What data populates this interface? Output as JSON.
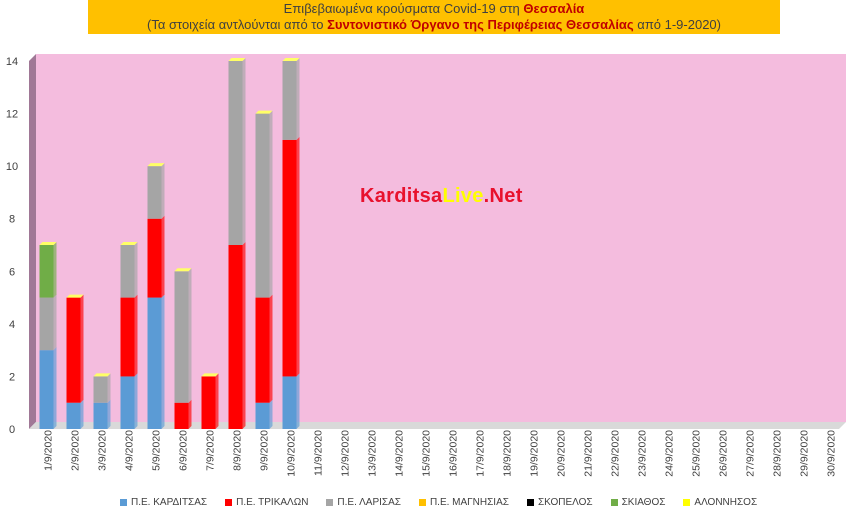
{
  "header": {
    "line1_prefix": "Επιβεβαιωμένα κρούσματα Covid-19 στη ",
    "line1_bold": "Θεσσαλία",
    "line2_prefix": "(Τα στοιχεία αντλούνται από το ",
    "line2_bold": "Συντονιστικό Όργανο της Περιφέρειας Θεσσαλίας",
    "line2_suffix": " από 1-9-2020)"
  },
  "watermark": {
    "part1": "Karditsa",
    "part2": "Live",
    "part3": ".Net"
  },
  "chart_data": {
    "type": "bar",
    "stacked": true,
    "ylim": [
      0,
      14
    ],
    "yticks": [
      0,
      2,
      4,
      6,
      8,
      10,
      12,
      14
    ],
    "grid": false,
    "legend_position": "bottom",
    "categories": [
      "1/9/2020",
      "2/9/2020",
      "3/9/2020",
      "4/9/2020",
      "5/9/2020",
      "6/9/2020",
      "7/9/2020",
      "8/9/2020",
      "9/9/2020",
      "10/9/2020",
      "11/9/2020",
      "12/9/2020",
      "13/9/2020",
      "14/9/2020",
      "15/9/2020",
      "16/9/2020",
      "17/9/2020",
      "18/9/2020",
      "19/9/2020",
      "20/9/2020",
      "21/9/2020",
      "22/9/2020",
      "23/9/2020",
      "24/9/2020",
      "25/9/2020",
      "26/9/2020",
      "27/9/2020",
      "28/9/2020",
      "29/9/2020",
      "30/9/2020"
    ],
    "series": [
      {
        "name": "Π.Ε. ΚΑΡΔΙΤΣΑΣ",
        "color": "#5b9bd5",
        "values": [
          3,
          1,
          1,
          2,
          5,
          0,
          0,
          0,
          1,
          2,
          0,
          0,
          0,
          0,
          0,
          0,
          0,
          0,
          0,
          0,
          0,
          0,
          0,
          0,
          0,
          0,
          0,
          0,
          0,
          0
        ]
      },
      {
        "name": "Π.Ε. ΤΡΙΚΑΛΩΝ",
        "color": "#ff0000",
        "values": [
          0,
          4,
          0,
          3,
          3,
          1,
          2,
          7,
          4,
          9,
          0,
          0,
          0,
          0,
          0,
          0,
          0,
          0,
          0,
          0,
          0,
          0,
          0,
          0,
          0,
          0,
          0,
          0,
          0,
          0
        ]
      },
      {
        "name": "Π.Ε. ΛΑΡΙΣΑΣ",
        "color": "#a5a5a5",
        "values": [
          2,
          0,
          1,
          2,
          2,
          5,
          0,
          7,
          7,
          3,
          0,
          0,
          0,
          0,
          0,
          0,
          0,
          0,
          0,
          0,
          0,
          0,
          0,
          0,
          0,
          0,
          0,
          0,
          0,
          0
        ]
      },
      {
        "name": "Π.Ε. ΜΑΓΝΗΣΙΑΣ",
        "color": "#ffc000",
        "values": [
          0,
          0,
          0,
          0,
          0,
          0,
          0,
          0,
          0,
          0,
          0,
          0,
          0,
          0,
          0,
          0,
          0,
          0,
          0,
          0,
          0,
          0,
          0,
          0,
          0,
          0,
          0,
          0,
          0,
          0
        ]
      },
      {
        "name": "ΣΚΟΠΕΛΟΣ",
        "color": "#000000",
        "values": [
          0,
          0,
          0,
          0,
          0,
          0,
          0,
          0,
          0,
          0,
          0,
          0,
          0,
          0,
          0,
          0,
          0,
          0,
          0,
          0,
          0,
          0,
          0,
          0,
          0,
          0,
          0,
          0,
          0,
          0
        ]
      },
      {
        "name": "ΣΚΙΑΘΟΣ",
        "color": "#70ad47",
        "values": [
          2,
          0,
          0,
          0,
          0,
          0,
          0,
          0,
          0,
          0,
          0,
          0,
          0,
          0,
          0,
          0,
          0,
          0,
          0,
          0,
          0,
          0,
          0,
          0,
          0,
          0,
          0,
          0,
          0,
          0
        ]
      },
      {
        "name": "ΑΛΟΝΝΗΣΟΣ",
        "color": "#ffff00",
        "values": [
          0,
          0,
          0,
          0,
          0,
          0,
          0,
          0,
          0,
          0,
          0,
          0,
          0,
          0,
          0,
          0,
          0,
          0,
          0,
          0,
          0,
          0,
          0,
          0,
          0,
          0,
          0,
          0,
          0,
          0
        ]
      }
    ]
  },
  "colors": {
    "plot_background": "#f4bcde",
    "wall_side": "#a07896"
  }
}
